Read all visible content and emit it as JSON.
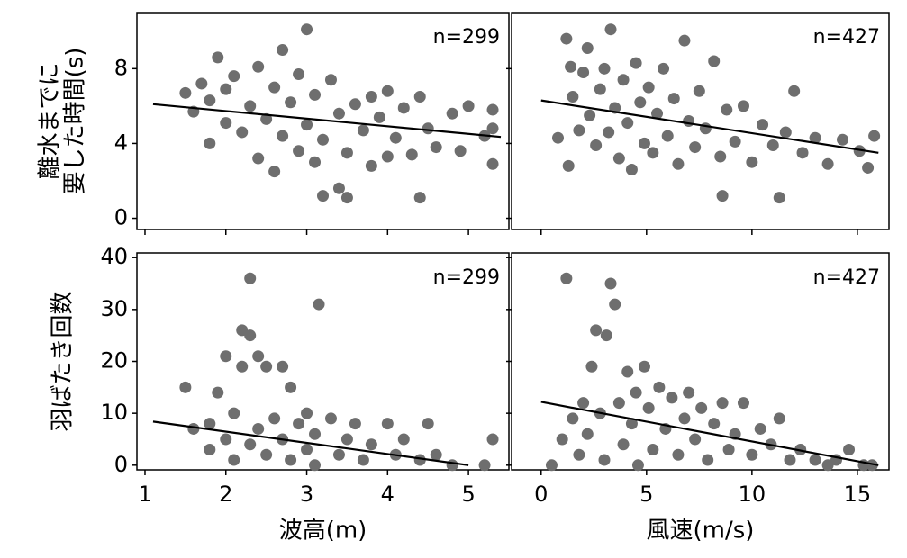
{
  "chart_data": [
    {
      "type": "scatter",
      "annotation": "n=299",
      "color": "#6e6e6e",
      "line_color": "#000000",
      "ylabel": [
        "離水までに",
        "要した時間(s)"
      ],
      "xlim": [
        0.9,
        5.5
      ],
      "ylim": [
        -0.6,
        11
      ],
      "xticks": [
        1,
        2,
        3,
        4,
        5
      ],
      "yticks": [
        0,
        4,
        8
      ],
      "tick_labels": {
        "x": false,
        "y": true
      },
      "x": [
        1.5,
        1.6,
        1.7,
        1.8,
        1.8,
        1.9,
        2.0,
        2.0,
        2.1,
        2.2,
        2.3,
        2.4,
        2.4,
        2.5,
        2.6,
        2.6,
        2.7,
        2.7,
        2.8,
        2.9,
        2.9,
        3.0,
        3.0,
        3.1,
        3.1,
        3.2,
        3.2,
        3.3,
        3.4,
        3.4,
        3.5,
        3.5,
        3.6,
        3.7,
        3.8,
        3.8,
        3.9,
        4.0,
        4.0,
        4.1,
        4.2,
        4.3,
        4.4,
        4.4,
        4.5,
        4.6,
        4.8,
        4.9,
        5.0,
        5.2,
        5.3,
        5.3,
        5.3
      ],
      "y": [
        6.7,
        5.7,
        7.2,
        6.3,
        4.0,
        8.6,
        6.9,
        5.1,
        7.6,
        4.6,
        6.0,
        8.1,
        3.2,
        5.3,
        7.0,
        2.5,
        9.0,
        4.4,
        6.2,
        3.6,
        7.7,
        10.1,
        5.0,
        6.6,
        3.0,
        1.2,
        4.2,
        7.4,
        1.6,
        5.6,
        1.1,
        3.5,
        6.1,
        4.7,
        2.8,
        6.5,
        5.4,
        3.3,
        6.8,
        4.3,
        5.9,
        3.4,
        1.1,
        6.5,
        4.8,
        3.8,
        5.6,
        3.6,
        6.0,
        4.4,
        5.8,
        2.9,
        4.8
      ],
      "fit": {
        "x": [
          1.1,
          5.4
        ],
        "y": [
          6.1,
          4.35
        ]
      }
    },
    {
      "type": "scatter",
      "annotation": "n=427",
      "color": "#6e6e6e",
      "line_color": "#000000",
      "xlim": [
        -1.4,
        16.5
      ],
      "ylim": [
        -0.6,
        11
      ],
      "xticks": [
        0,
        5,
        10,
        15
      ],
      "yticks": [
        0,
        4,
        8
      ],
      "tick_labels": {
        "x": false,
        "y": false
      },
      "x": [
        0.8,
        1.2,
        1.3,
        1.4,
        1.5,
        1.8,
        2.0,
        2.2,
        2.3,
        2.6,
        2.8,
        3.0,
        3.2,
        3.3,
        3.5,
        3.7,
        3.9,
        4.1,
        4.3,
        4.5,
        4.7,
        4.9,
        5.1,
        5.3,
        5.5,
        5.8,
        6.0,
        6.3,
        6.5,
        6.8,
        7.0,
        7.3,
        7.5,
        7.8,
        8.2,
        8.5,
        8.6,
        8.8,
        9.2,
        9.6,
        10.0,
        10.5,
        11.0,
        11.3,
        11.6,
        12.0,
        12.4,
        13.0,
        13.6,
        14.3,
        15.1,
        15.5,
        15.8
      ],
      "y": [
        4.3,
        9.6,
        2.8,
        8.1,
        6.5,
        4.7,
        7.8,
        9.1,
        5.5,
        3.9,
        6.9,
        8.0,
        4.6,
        10.1,
        5.9,
        3.2,
        7.4,
        5.1,
        2.6,
        8.3,
        6.2,
        4.0,
        7.0,
        3.5,
        5.6,
        8.0,
        4.4,
        6.4,
        2.9,
        9.5,
        5.2,
        3.8,
        6.8,
        4.8,
        8.4,
        3.3,
        1.2,
        5.8,
        4.1,
        6.0,
        3.0,
        5.0,
        3.9,
        1.1,
        4.6,
        6.8,
        3.5,
        4.3,
        2.9,
        4.2,
        3.6,
        2.7,
        4.4
      ],
      "fit": {
        "x": [
          0,
          16
        ],
        "y": [
          6.3,
          3.5
        ]
      }
    },
    {
      "type": "scatter",
      "annotation": "n=299",
      "color": "#6e6e6e",
      "line_color": "#000000",
      "ylabel": [
        "羽ばたき回数"
      ],
      "xlabel": "波高(m)",
      "xlim": [
        0.9,
        5.5
      ],
      "ylim": [
        -0.9,
        40.9
      ],
      "xticks": [
        1,
        2,
        3,
        4,
        5
      ],
      "yticks": [
        0,
        10,
        20,
        30,
        40
      ],
      "tick_labels": {
        "x": true,
        "y": true
      },
      "x": [
        1.5,
        1.6,
        1.8,
        1.8,
        1.9,
        2.0,
        2.0,
        2.1,
        2.1,
        2.2,
        2.2,
        2.3,
        2.3,
        2.3,
        2.4,
        2.4,
        2.5,
        2.5,
        2.6,
        2.7,
        2.7,
        2.8,
        2.8,
        2.9,
        3.0,
        3.0,
        3.1,
        3.1,
        3.15,
        3.3,
        3.4,
        3.5,
        3.6,
        3.7,
        3.8,
        4.0,
        4.1,
        4.2,
        4.4,
        4.5,
        4.6,
        4.8,
        5.2,
        5.3
      ],
      "y": [
        15,
        7,
        8,
        3,
        14,
        21,
        5,
        10,
        1,
        26,
        19,
        36,
        25,
        4,
        21,
        7,
        19,
        2,
        9,
        19,
        5,
        15,
        1,
        8,
        3,
        10,
        6,
        0,
        31,
        9,
        2,
        5,
        8,
        1,
        4,
        8,
        2,
        5,
        1,
        8,
        2,
        0,
        0,
        5
      ],
      "fit": {
        "x": [
          1.1,
          5.0
        ],
        "y": [
          8.4,
          0
        ]
      }
    },
    {
      "type": "scatter",
      "annotation": "n=427",
      "color": "#6e6e6e",
      "line_color": "#000000",
      "xlabel": "風速(m/s)",
      "xlim": [
        -1.4,
        16.5
      ],
      "ylim": [
        -0.9,
        40.9
      ],
      "xticks": [
        0,
        5,
        10,
        15
      ],
      "yticks": [
        0,
        10,
        20,
        30,
        40
      ],
      "tick_labels": {
        "x": true,
        "y": false
      },
      "x": [
        0.5,
        1.0,
        1.2,
        1.5,
        1.8,
        2.0,
        2.2,
        2.4,
        2.6,
        2.8,
        3.0,
        3.1,
        3.3,
        3.5,
        3.7,
        3.9,
        4.1,
        4.3,
        4.5,
        4.6,
        4.9,
        5.1,
        5.3,
        5.6,
        5.9,
        6.2,
        6.5,
        6.8,
        7.0,
        7.3,
        7.6,
        7.9,
        8.2,
        8.6,
        8.9,
        9.2,
        9.6,
        10.0,
        10.4,
        10.9,
        11.3,
        11.8,
        12.3,
        13.0,
        13.6,
        14.0,
        14.6,
        15.3,
        15.7
      ],
      "y": [
        0,
        5,
        36,
        9,
        2,
        12,
        6,
        19,
        26,
        10,
        1,
        25,
        35,
        31,
        12,
        4,
        18,
        8,
        14,
        0,
        19,
        11,
        3,
        15,
        7,
        13,
        2,
        9,
        14,
        5,
        11,
        1,
        8,
        12,
        3,
        6,
        12,
        2,
        7,
        4,
        9,
        1,
        3,
        1,
        0,
        1,
        3,
        0,
        0
      ],
      "fit": {
        "x": [
          0,
          16
        ],
        "y": [
          12.2,
          0
        ]
      }
    }
  ]
}
